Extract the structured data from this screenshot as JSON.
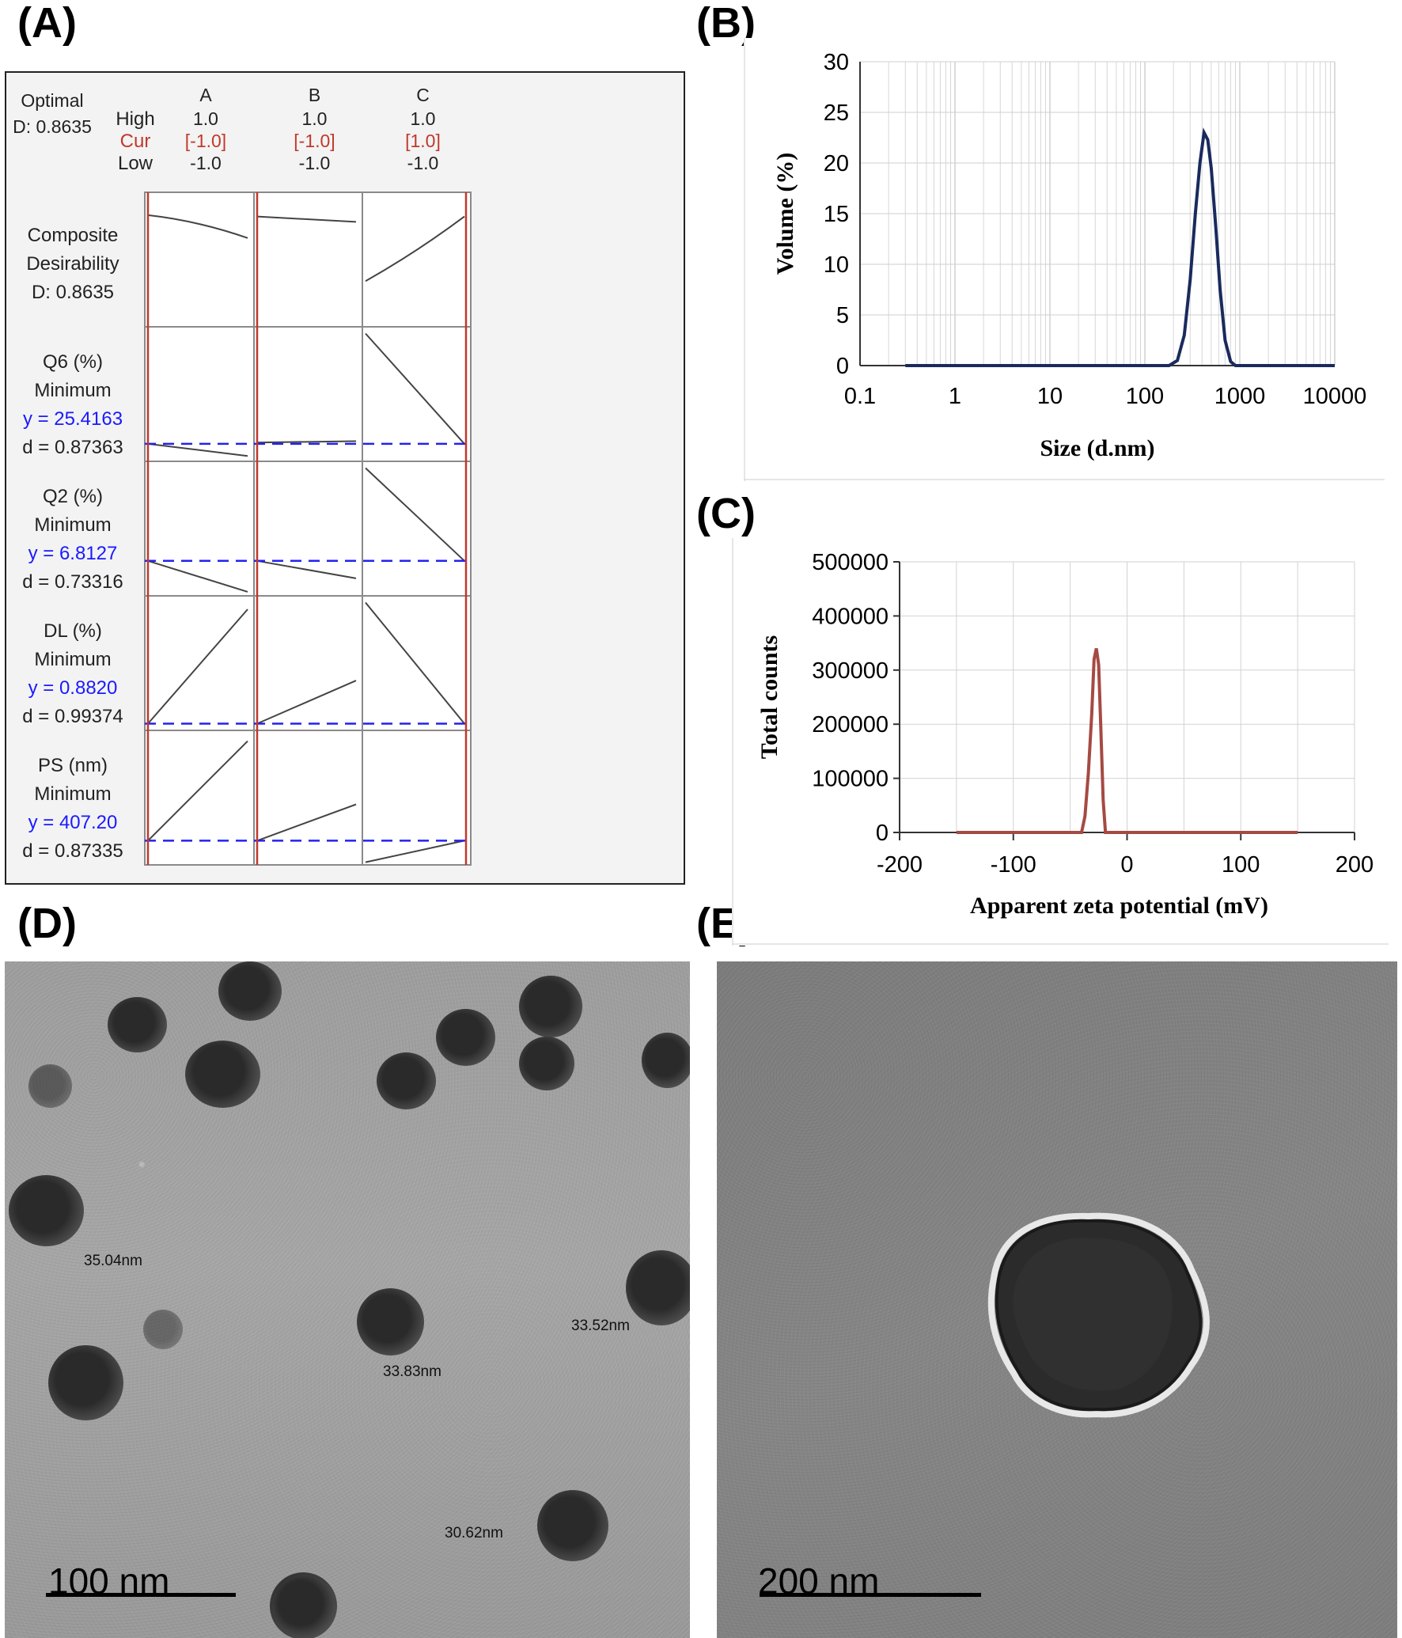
{
  "panels": {
    "a": {
      "label": "(A)"
    },
    "b": {
      "label": "(B)"
    },
    "c": {
      "label": "(C)"
    },
    "d": {
      "label": "(D)"
    },
    "e": {
      "label": "(E)"
    }
  },
  "optimizer": {
    "optimal_label": "Optimal",
    "d_value": "D: 0.8635",
    "row_high": "High",
    "row_cur": "Cur",
    "row_low": "Low",
    "factors": [
      {
        "name": "A",
        "high": "1.0",
        "cur": "[-1.0]",
        "low": "-1.0"
      },
      {
        "name": "B",
        "high": "1.0",
        "cur": "[-1.0]",
        "low": "-1.0"
      },
      {
        "name": "C",
        "high": "1.0",
        "cur": "[1.0]",
        "low": "-1.0"
      }
    ],
    "rows": [
      {
        "line1": "Composite",
        "line2": "Desirability",
        "line3": "D: 0.8635",
        "line4": ""
      },
      {
        "line1": "Q6 (%)",
        "line2": "Minimum",
        "line3": "y = 25.4163",
        "line4": "d = 0.87363"
      },
      {
        "line1": "Q2 (%)",
        "line2": "Minimum",
        "line3": "y = 6.8127",
        "line4": "d = 0.73316"
      },
      {
        "line1": "DL (%)",
        "line2": "Minimum",
        "line3": "y = 0.8820",
        "line4": "d = 0.99374"
      },
      {
        "line1": "PS (nm)",
        "line2": "Minimum",
        "line3": "y = 407.20",
        "line4": "d = 0.87335"
      }
    ],
    "colors": {
      "cur": "#c0392b",
      "y": "#1a1aff",
      "ref_line": "#c0392b",
      "dash": "#2222ee"
    }
  },
  "chart_data": [
    {
      "type": "line",
      "panel": "B",
      "xlabel": "Size (d.nm)",
      "ylabel": "Volume (%)",
      "x_scale": "log",
      "xlim": [
        0.1,
        10000
      ],
      "ylim": [
        0,
        30
      ],
      "x_ticks": [
        "0.1",
        "1",
        "10",
        "100",
        "1000",
        "10000"
      ],
      "y_ticks": [
        "0",
        "5",
        "10",
        "15",
        "20",
        "25",
        "30"
      ],
      "grid": true,
      "color": "#1a2a5e",
      "x": [
        0.3,
        100,
        180,
        220,
        260,
        300,
        340,
        380,
        420,
        460,
        500,
        560,
        620,
        700,
        800,
        900,
        1000,
        10000
      ],
      "y": [
        0,
        0,
        0,
        0.5,
        3,
        8.5,
        15,
        20,
        23,
        22.3,
        19.5,
        13.5,
        7.5,
        2.5,
        0.4,
        0,
        0,
        0
      ]
    },
    {
      "type": "line",
      "panel": "C",
      "xlabel": "Apparent zeta potential (mV)",
      "ylabel": "Total counts",
      "xlim": [
        -200,
        200
      ],
      "ylim": [
        0,
        500000
      ],
      "x_ticks": [
        "-200",
        "-100",
        "0",
        "100",
        "200"
      ],
      "y_ticks": [
        "0",
        "100000",
        "200000",
        "300000",
        "400000",
        "500000"
      ],
      "grid": true,
      "color": "#a54a43",
      "x": [
        -150,
        -40,
        -37,
        -34,
        -31,
        -29,
        -27,
        -25,
        -23,
        -21,
        -19,
        150
      ],
      "y": [
        0,
        0,
        30000,
        110000,
        220000,
        320000,
        340000,
        310000,
        190000,
        60000,
        0,
        0
      ]
    }
  ],
  "tem_d": {
    "scale": "100 nm",
    "measurements": [
      "35.04nm",
      "33.52nm",
      "33.83nm",
      "30.62nm"
    ]
  },
  "tem_e": {
    "scale": "200 nm"
  }
}
